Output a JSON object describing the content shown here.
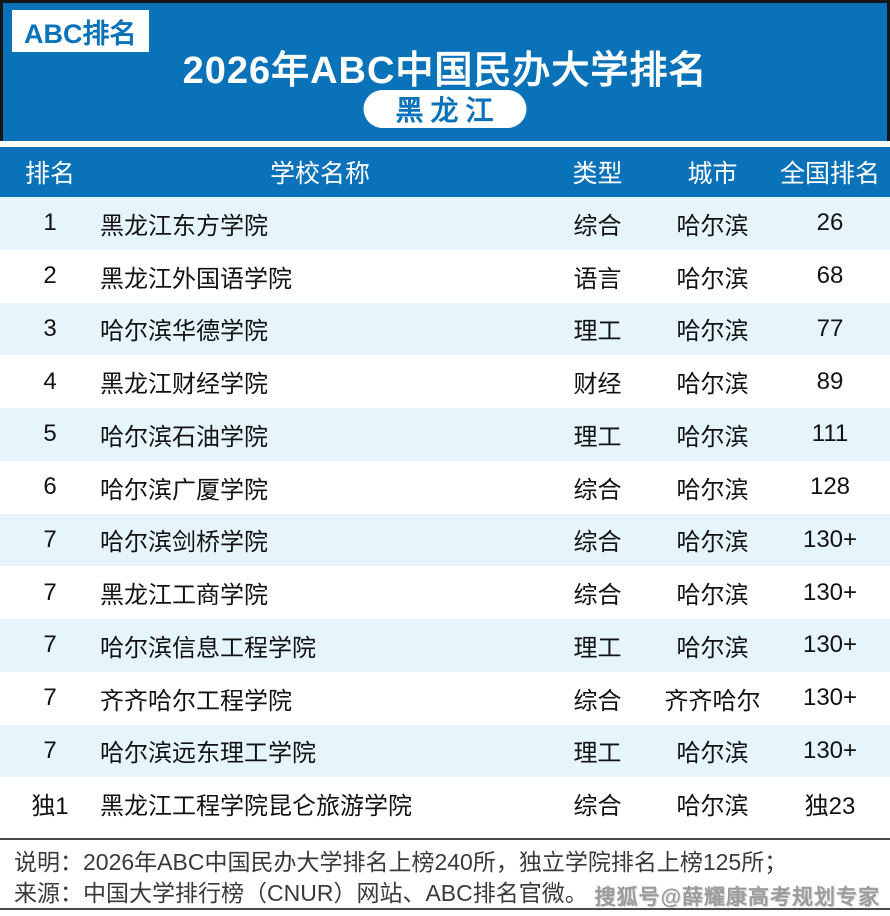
{
  "banner": {
    "badge": "ABC排名",
    "title": "2026年ABC中国民办大学排名",
    "region": "黑龙江"
  },
  "table": {
    "columns": [
      "排名",
      "学校名称",
      "类型",
      "城市",
      "全国排名"
    ],
    "rows": [
      {
        "rank": "1",
        "school": "黑龙江东方学院",
        "type": "综合",
        "city": "哈尔滨",
        "national_rank": "26"
      },
      {
        "rank": "2",
        "school": "黑龙江外国语学院",
        "type": "语言",
        "city": "哈尔滨",
        "national_rank": "68"
      },
      {
        "rank": "3",
        "school": "哈尔滨华德学院",
        "type": "理工",
        "city": "哈尔滨",
        "national_rank": "77"
      },
      {
        "rank": "4",
        "school": "黑龙江财经学院",
        "type": "财经",
        "city": "哈尔滨",
        "national_rank": "89"
      },
      {
        "rank": "5",
        "school": "哈尔滨石油学院",
        "type": "理工",
        "city": "哈尔滨",
        "national_rank": "111"
      },
      {
        "rank": "6",
        "school": "哈尔滨广厦学院",
        "type": "综合",
        "city": "哈尔滨",
        "national_rank": "128"
      },
      {
        "rank": "7",
        "school": "哈尔滨剑桥学院",
        "type": "综合",
        "city": "哈尔滨",
        "national_rank": "130+"
      },
      {
        "rank": "7",
        "school": "黑龙江工商学院",
        "type": "综合",
        "city": "哈尔滨",
        "national_rank": "130+"
      },
      {
        "rank": "7",
        "school": "哈尔滨信息工程学院",
        "type": "理工",
        "city": "哈尔滨",
        "national_rank": "130+"
      },
      {
        "rank": "7",
        "school": "齐齐哈尔工程学院",
        "type": "综合",
        "city": "齐齐哈尔",
        "national_rank": "130+"
      },
      {
        "rank": "7",
        "school": "哈尔滨远东理工学院",
        "type": "理工",
        "city": "哈尔滨",
        "national_rank": "130+"
      },
      {
        "rank": "独1",
        "school": "黑龙江工程学院昆仑旅游学院",
        "type": "综合",
        "city": "哈尔滨",
        "national_rank": "独23"
      }
    ]
  },
  "footer": {
    "note": "说明：2026年ABC中国民办大学排名上榜240所，独立学院排名上榜125所；",
    "source": "来源：中国大学排行榜（CNUR）网站、ABC排名官微。",
    "watermark": "搜狐号@薛耀康高考规划专家"
  },
  "colors": {
    "primary_blue": "#0a72b9",
    "row_alt_blue": "#e6f4fc",
    "banner_border": "#161616",
    "footer_text": "#3a3a3a"
  }
}
